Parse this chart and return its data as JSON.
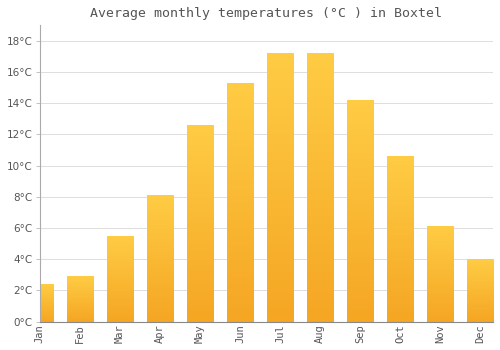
{
  "title": "Average monthly temperatures (°C ) in Boxtel",
  "months": [
    "Jan",
    "Feb",
    "Mar",
    "Apr",
    "May",
    "Jun",
    "Jul",
    "Aug",
    "Sep",
    "Oct",
    "Nov",
    "Dec"
  ],
  "values": [
    2.4,
    2.9,
    5.5,
    8.1,
    12.6,
    15.3,
    17.2,
    17.2,
    14.2,
    10.6,
    6.1,
    4.0
  ],
  "bar_color_top": "#FFCC44",
  "bar_color_bottom": "#F5A623",
  "background_color": "#FFFFFF",
  "grid_color": "#DDDDDD",
  "text_color": "#555555",
  "ylim": [
    0,
    19
  ],
  "yticks": [
    0,
    2,
    4,
    6,
    8,
    10,
    12,
    14,
    16,
    18
  ],
  "title_fontsize": 9.5,
  "tick_fontsize": 7.5
}
